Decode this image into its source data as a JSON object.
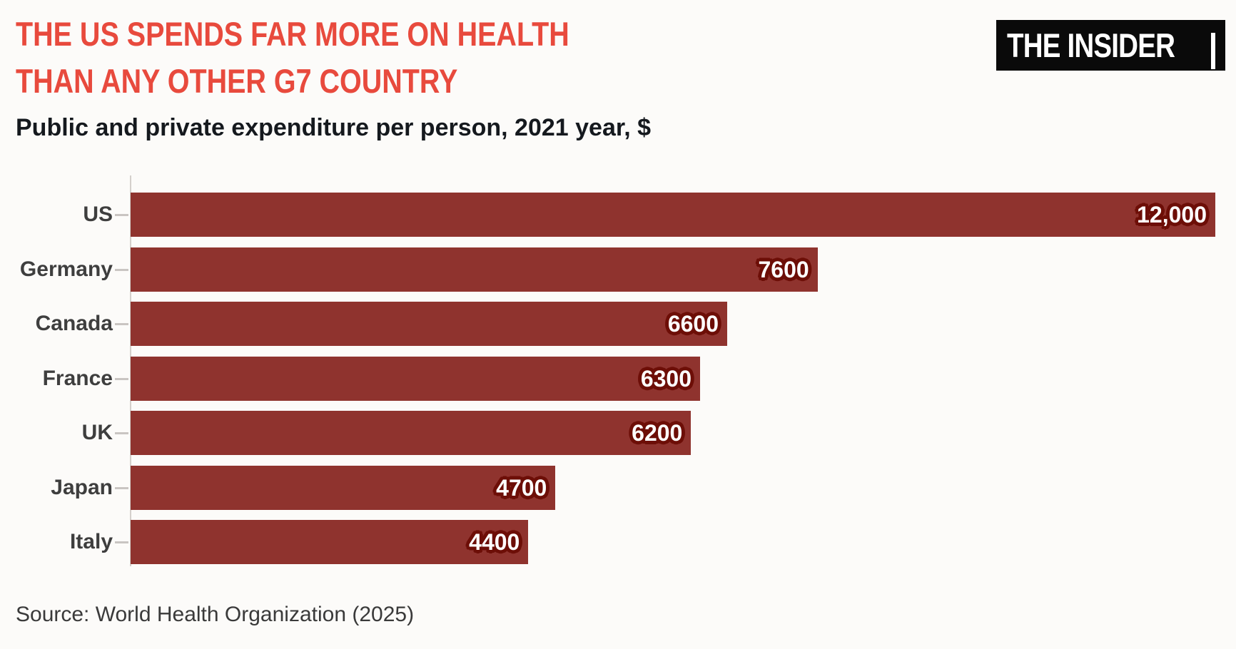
{
  "header": {
    "title_line1": "THE US SPENDS FAR MORE ON HEALTH",
    "title_line2": "THAN ANY OTHER G7 COUNTRY",
    "subtitle": "Public and private expenditure per person, 2021 year, $",
    "logo_text": "THE INSIDER"
  },
  "footer": {
    "source": "Source: World Health Organization (2025)"
  },
  "colors": {
    "title_red": "#e84a3d",
    "bar_red": "#8f332e",
    "value_outline_dark_red": "#6d0e07",
    "category_label_gray": "#3e3e3e",
    "axis_gray": "#d4d0cc",
    "background": "#fcfbf9",
    "logo_background": "#0a0a0a",
    "logo_foreground": "#ffffff"
  },
  "chart_data": {
    "type": "bar",
    "orientation": "horizontal",
    "title": "THE US SPENDS FAR MORE ON HEALTH THAN ANY OTHER G7 COUNTRY",
    "subtitle": "Public and private expenditure per person, 2021 year, $",
    "categories": [
      "US",
      "Germany",
      "Canada",
      "France",
      "UK",
      "Japan",
      "Italy"
    ],
    "values": [
      12000,
      7600,
      6600,
      6300,
      6200,
      4700,
      4400
    ],
    "value_labels": [
      "12,000",
      "7600",
      "6600",
      "6300",
      "6200",
      "4700",
      "4400"
    ],
    "xlim": [
      0,
      12000
    ],
    "grid": false,
    "legend": "none",
    "bar_color": "#8f332e",
    "source": "Source: World Health Organization (2025)"
  }
}
